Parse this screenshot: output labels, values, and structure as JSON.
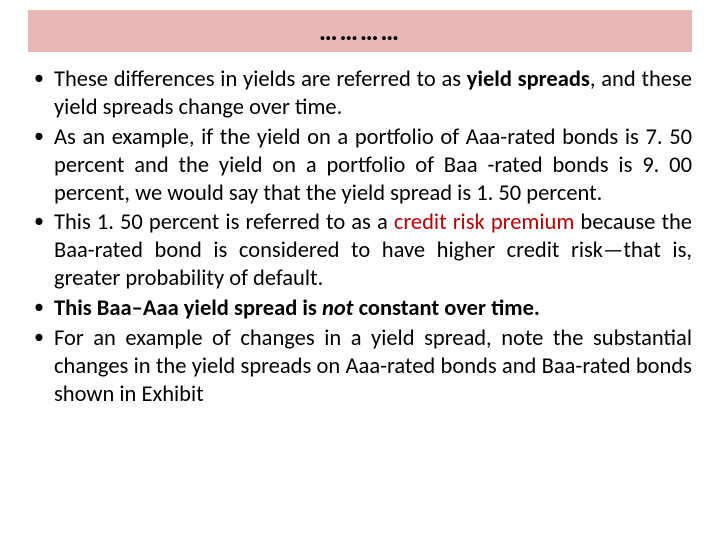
{
  "header": {
    "dots": "…………",
    "background_color": "#e8b8b8"
  },
  "bullets": [
    {
      "segments": [
        {
          "text": "These differences in yields are referred to as "
        },
        {
          "text": "yield spreads",
          "bold": true
        },
        {
          "text": ", and these yield spreads change over time."
        }
      ]
    },
    {
      "segments": [
        {
          "text": "As an example, if the yield on a portfolio of Aaa-rated bonds is 7. 50 percent and the yield on a portfolio of Baa -rated bonds is 9. 00 percent, we would say that the yield spread is 1. 50 percent."
        }
      ]
    },
    {
      "segments": [
        {
          "text": "This 1. 50 percent is referred to as a "
        },
        {
          "text": "credit risk premium ",
          "red": true
        },
        {
          "text": "because the Baa-rated bond is considered to have higher credit risk—that is, greater probability of default."
        }
      ]
    },
    {
      "segments": [
        {
          "text": "This Baa–Aaa yield spread is ",
          "bold": true
        },
        {
          "text": "not",
          "bold": true,
          "italic": true
        },
        {
          "text": " constant over time.",
          "bold": true
        }
      ]
    },
    {
      "segments": [
        {
          "text": "For an example of changes in a yield spread, note the substantial changes in the yield spreads on Aaa-rated bonds and Baa-rated bonds shown in Exhibit"
        }
      ]
    }
  ]
}
